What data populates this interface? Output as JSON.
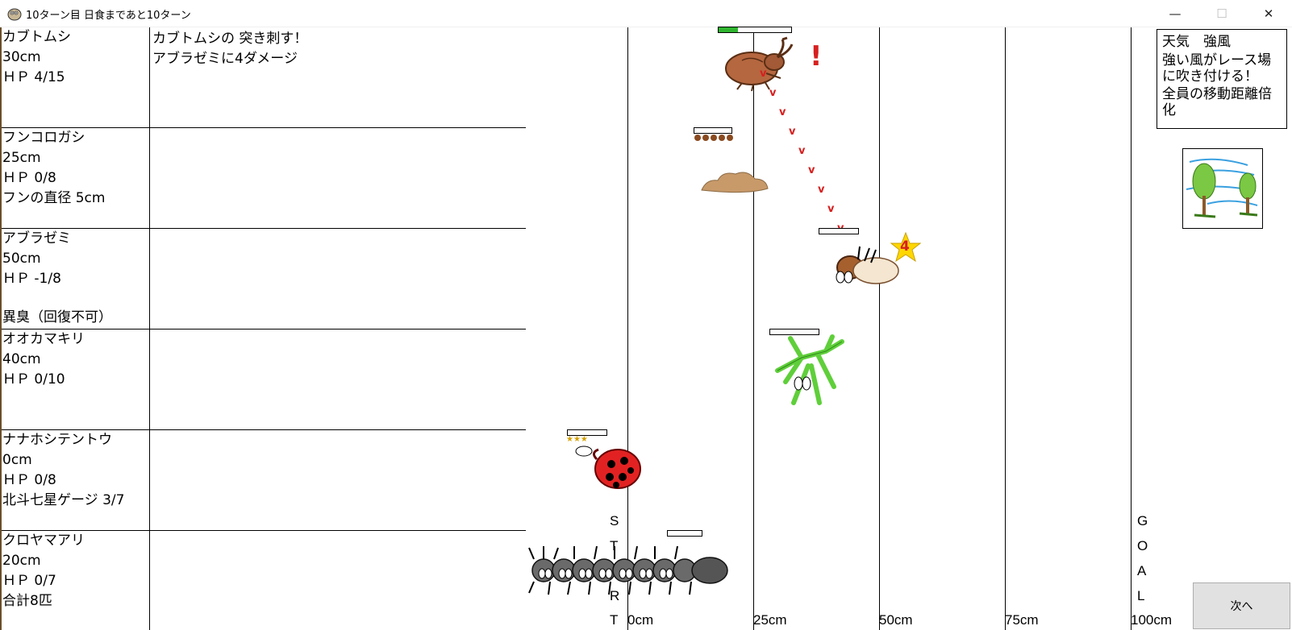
{
  "window": {
    "title": "10ターン目 日食まであと10ターン",
    "minimize": "—",
    "maximize": "☐",
    "close": "✕"
  },
  "racers": [
    {
      "name": "カブトムシ",
      "distance": "30cm",
      "hp": "ＨＰ 4/15",
      "extra1": "",
      "extra2": "",
      "message1": "カブトムシの 突き刺す！",
      "message2": "アブラゼミに4ダメージ",
      "hp_fraction": 0.27
    },
    {
      "name": "フンコロガシ",
      "distance": "25cm",
      "hp": "ＨＰ 0/8",
      "extra1": "フンの直径 5cm",
      "extra2": "",
      "message1": "",
      "message2": "",
      "hp_fraction": 0
    },
    {
      "name": "アブラゼミ",
      "distance": "50cm",
      "hp": "ＨＰ -1/8",
      "extra1": "",
      "extra2": "異臭（回復不可）",
      "message1": "",
      "message2": "",
      "hp_fraction": 0
    },
    {
      "name": "オオカマキリ",
      "distance": "40cm",
      "hp": "ＨＰ 0/10",
      "extra1": "",
      "extra2": "",
      "message1": "",
      "message2": "",
      "hp_fraction": 0
    },
    {
      "name": "ナナホシテントウ",
      "distance": "0cm",
      "hp": "ＨＰ 0/8",
      "extra1": "北斗七星ゲージ 3/7",
      "extra2": "",
      "message1": "",
      "message2": "",
      "hp_fraction": 0
    },
    {
      "name": "クロヤマアリ",
      "distance": "20cm",
      "hp": "ＨＰ 0/7",
      "extra1": "合計8匹",
      "extra2": "",
      "message1": "",
      "message2": "",
      "hp_fraction": 0
    }
  ],
  "track": {
    "start_letters": [
      "S",
      "T",
      "A",
      "R",
      "T"
    ],
    "goal_letters": [
      "G",
      "O",
      "A",
      "L"
    ],
    "labels": [
      "0cm",
      "25cm",
      "50cm",
      "75cm",
      "100cm"
    ]
  },
  "weather": {
    "title": "天気　強風",
    "description": "強い風がレース場に吹き付ける！",
    "effect": "全員の移動距離倍化"
  },
  "effects": {
    "exclaim": "!",
    "damage_number": "4",
    "attack_mark": "v"
  },
  "next_button": "次へ",
  "colors": {
    "hp_fill": "#2fb52f",
    "attack_trail": "#d62020",
    "frame_brown": "#6b4e2a"
  }
}
